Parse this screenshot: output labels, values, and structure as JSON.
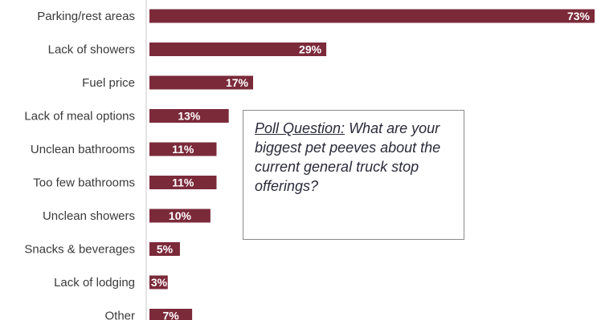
{
  "chart_data": {
    "type": "bar",
    "orientation": "horizontal",
    "categories": [
      "Parking/rest areas",
      "Lack of showers",
      "Fuel price",
      "Lack of meal options",
      "Unclean bathrooms",
      "Too few bathrooms",
      "Unclean showers",
      "Snacks & beverages",
      "Lack of lodging",
      "Other"
    ],
    "values": [
      73,
      29,
      17,
      13,
      11,
      11,
      10,
      5,
      3,
      7
    ],
    "value_labels": [
      "73%",
      "29%",
      "17%",
      "13%",
      "11%",
      "11%",
      "10%",
      "5%",
      "3%",
      "7%"
    ],
    "bar_color": "#7b2a3a",
    "title": "",
    "xlabel": "",
    "ylabel": "",
    "xlim": [
      0,
      73
    ]
  },
  "annotation": {
    "lead": "Poll Question:",
    "text": " What are your biggest pet peeves about the current general truck stop offerings?"
  }
}
